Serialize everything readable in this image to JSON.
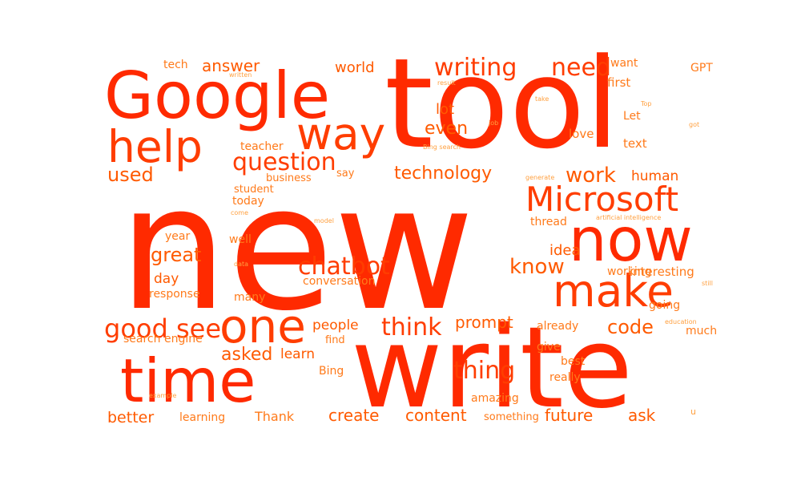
{
  "palette": {
    "background": "#ffffff",
    "colors": [
      "#ff2a00",
      "#ff3d00",
      "#ff5a00",
      "#ff7a1a",
      "#ffa040"
    ]
  },
  "words": [
    {
      "text": "new",
      "weight": 100,
      "orientation": "horizontal"
    },
    {
      "text": "tool",
      "weight": 72,
      "orientation": "horizontal"
    },
    {
      "text": "write",
      "weight": 66,
      "orientation": "horizontal"
    },
    {
      "text": "Google",
      "weight": 52,
      "orientation": "horizontal"
    },
    {
      "text": "time",
      "weight": 44,
      "orientation": "horizontal"
    },
    {
      "text": "now",
      "weight": 43,
      "orientation": "horizontal"
    },
    {
      "text": "one",
      "weight": 37,
      "orientation": "horizontal"
    },
    {
      "text": "way",
      "weight": 36,
      "orientation": "horizontal"
    },
    {
      "text": "make",
      "weight": 36,
      "orientation": "horizontal"
    },
    {
      "text": "help",
      "weight": 35,
      "orientation": "horizontal"
    },
    {
      "text": "Microsoft",
      "weight": 30,
      "orientation": "horizontal"
    },
    {
      "text": "writing",
      "weight": 21,
      "orientation": "horizontal"
    },
    {
      "text": "need",
      "weight": 21,
      "orientation": "horizontal"
    },
    {
      "text": "question",
      "weight": 21,
      "orientation": "horizontal"
    },
    {
      "text": "good",
      "weight": 21,
      "orientation": "horizontal"
    },
    {
      "text": "see",
      "weight": 21,
      "orientation": "horizontal"
    },
    {
      "text": "think",
      "weight": 21,
      "orientation": "horizontal"
    },
    {
      "text": "thing",
      "weight": 21,
      "orientation": "horizontal"
    },
    {
      "text": "chatbot",
      "weight": 20,
      "orientation": "horizontal"
    },
    {
      "text": "work",
      "weight": 19,
      "orientation": "horizontal"
    },
    {
      "text": "know",
      "weight": 19,
      "orientation": "horizontal"
    },
    {
      "text": "code",
      "weight": 18,
      "orientation": "horizontal"
    },
    {
      "text": "technology",
      "weight": 17,
      "orientation": "horizontal"
    },
    {
      "text": "used",
      "weight": 17,
      "orientation": "horizontal"
    },
    {
      "text": "even",
      "weight": 17,
      "orientation": "horizontal"
    },
    {
      "text": "answer",
      "weight": 17,
      "orientation": "horizontal"
    },
    {
      "text": "great",
      "weight": 17,
      "orientation": "horizontal"
    },
    {
      "text": "prompt",
      "weight": 17,
      "orientation": "horizontal"
    },
    {
      "text": "asked",
      "weight": 17,
      "orientation": "horizontal"
    },
    {
      "text": "create",
      "weight": 17,
      "orientation": "horizontal"
    },
    {
      "text": "content",
      "weight": 17,
      "orientation": "horizontal"
    },
    {
      "text": "future",
      "weight": 17,
      "orientation": "horizontal"
    },
    {
      "text": "ask",
      "weight": 17,
      "orientation": "horizontal"
    },
    {
      "text": "better",
      "weight": 15,
      "orientation": "horizontal"
    },
    {
      "text": "lot",
      "weight": 15,
      "orientation": "horizontal"
    },
    {
      "text": "idea",
      "weight": 15,
      "orientation": "horizontal"
    },
    {
      "text": "world",
      "weight": 15,
      "orientation": "horizontal"
    },
    {
      "text": "human",
      "weight": 15,
      "orientation": "horizontal"
    },
    {
      "text": "learn",
      "weight": 15,
      "orientation": "horizontal"
    },
    {
      "text": "people",
      "weight": 14,
      "orientation": "horizontal"
    },
    {
      "text": "day",
      "weight": 14,
      "orientation": "horizontal"
    },
    {
      "text": "Thank",
      "weight": 13,
      "orientation": "horizontal"
    },
    {
      "text": "love",
      "weight": 13,
      "orientation": "horizontal"
    },
    {
      "text": "first",
      "weight": 13,
      "orientation": "horizontal"
    },
    {
      "text": "text",
      "weight": 13,
      "orientation": "horizontal"
    },
    {
      "text": "interesting",
      "weight": 13,
      "orientation": "horizontal"
    },
    {
      "text": "thread",
      "weight": 12,
      "orientation": "horizontal"
    },
    {
      "text": "tech",
      "weight": 12,
      "orientation": "horizontal"
    },
    {
      "text": "teacher",
      "weight": 12,
      "orientation": "horizontal"
    },
    {
      "text": "today",
      "weight": 12,
      "orientation": "horizontal"
    },
    {
      "text": "year",
      "weight": 12,
      "orientation": "horizontal"
    },
    {
      "text": "well",
      "weight": 12,
      "orientation": "horizontal"
    },
    {
      "text": "conversation",
      "weight": 12,
      "orientation": "horizontal"
    },
    {
      "text": "response",
      "weight": 12,
      "orientation": "horizontal"
    },
    {
      "text": "many",
      "weight": 12,
      "orientation": "horizontal"
    },
    {
      "text": "going",
      "weight": 12,
      "orientation": "horizontal"
    },
    {
      "text": "search engine",
      "weight": 12,
      "orientation": "horizontal"
    },
    {
      "text": "give",
      "weight": 12,
      "orientation": "horizontal"
    },
    {
      "text": "much",
      "weight": 12,
      "orientation": "horizontal"
    },
    {
      "text": "best",
      "weight": 12,
      "orientation": "horizontal"
    },
    {
      "text": "really",
      "weight": 12,
      "orientation": "horizontal"
    },
    {
      "text": "amazing",
      "weight": 12,
      "orientation": "horizontal"
    },
    {
      "text": "Bing",
      "weight": 12,
      "orientation": "horizontal"
    },
    {
      "text": "learning",
      "weight": 12,
      "orientation": "horizontal"
    },
    {
      "text": "already",
      "weight": 12,
      "orientation": "horizontal"
    },
    {
      "text": "working",
      "weight": 12,
      "orientation": "horizontal"
    },
    {
      "text": "want",
      "weight": 12,
      "orientation": "horizontal"
    },
    {
      "text": "GPT",
      "weight": 12,
      "orientation": "horizontal"
    },
    {
      "text": "Let",
      "weight": 12,
      "orientation": "horizontal"
    },
    {
      "text": "business",
      "weight": 11,
      "orientation": "horizontal"
    },
    {
      "text": "student",
      "weight": 11,
      "orientation": "horizontal"
    },
    {
      "text": "say",
      "weight": 11,
      "orientation": "horizontal"
    },
    {
      "text": "find",
      "weight": 11,
      "orientation": "horizontal"
    },
    {
      "text": "something",
      "weight": 11,
      "orientation": "horizontal"
    },
    {
      "text": "written",
      "weight": 8,
      "orientation": "horizontal"
    },
    {
      "text": "result",
      "weight": 8,
      "orientation": "horizontal"
    },
    {
      "text": "take",
      "weight": 8,
      "orientation": "horizontal"
    },
    {
      "text": "Top",
      "weight": 8,
      "orientation": "horizontal"
    },
    {
      "text": "job",
      "weight": 8,
      "orientation": "horizontal"
    },
    {
      "text": "got",
      "weight": 8,
      "orientation": "horizontal"
    },
    {
      "text": "Bing search",
      "weight": 8,
      "orientation": "horizontal"
    },
    {
      "text": "generate",
      "weight": 8,
      "orientation": "horizontal"
    },
    {
      "text": "come",
      "weight": 8,
      "orientation": "horizontal"
    },
    {
      "text": "model",
      "weight": 8,
      "orientation": "horizontal"
    },
    {
      "text": "artificial intelligence",
      "weight": 8,
      "orientation": "horizontal"
    },
    {
      "text": "data",
      "weight": 8,
      "orientation": "horizontal"
    },
    {
      "text": "still",
      "weight": 8,
      "orientation": "horizontal"
    },
    {
      "text": "education",
      "weight": 8,
      "orientation": "horizontal"
    },
    {
      "text": "example",
      "weight": 8,
      "orientation": "horizontal"
    },
    {
      "text": "u",
      "weight": 8,
      "orientation": "horizontal"
    }
  ]
}
